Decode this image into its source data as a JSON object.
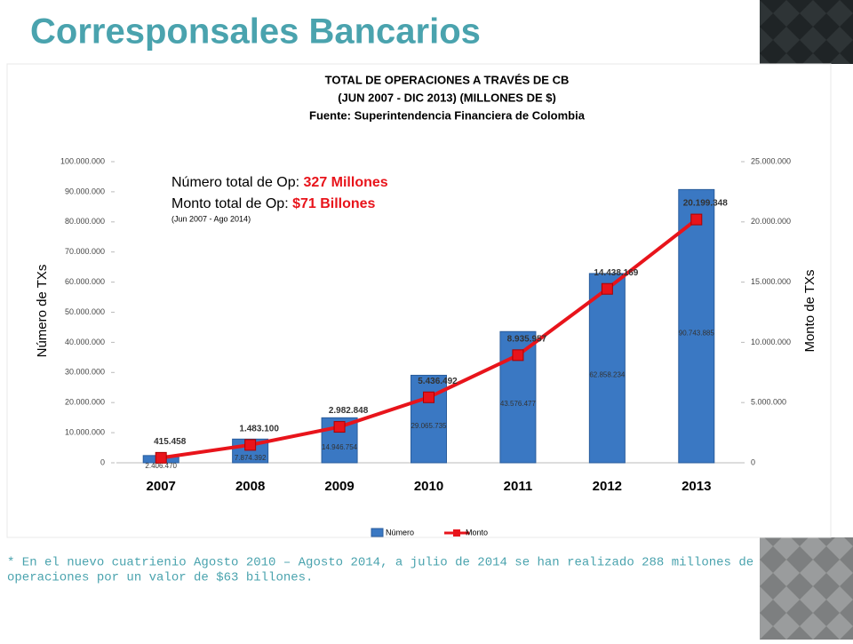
{
  "slide_title": "Corresponsales Bancarios",
  "footnote": [
    "* En el nuevo cuatrienio Agosto 2010 – Agosto 2014, a julio de 2014 se han realizado 288 millones de",
    "operaciones por un valor de $63 billones."
  ],
  "chart_data": {
    "type": "bar",
    "title": [
      "TOTAL DE OPERACIONES A TRAVÉS DE CB",
      "(JUN 2007 -  DIC 2013)  (MILLONES DE $)",
      "Fuente: Superintendencia Financiera de Colombia"
    ],
    "ylabel": "Número de TXs",
    "y2label": "Monto de TXs",
    "annotations": [
      {
        "text": "Número total de Op: ",
        "highlight": "327 Millones"
      },
      {
        "text": "Monto total de Op: ",
        "highlight": "$71 Billones"
      },
      {
        "text": "(Jun 2007 - Ago 2014)"
      }
    ],
    "categories": [
      "2007",
      "2008",
      "2009",
      "2010",
      "2011",
      "2012",
      "2013"
    ],
    "series": [
      {
        "name": "Número",
        "type": "bar",
        "color": "#3a78c3",
        "values": [
          2406470,
          7874392,
          14946754,
          29065735,
          43576477,
          62858234,
          90743885
        ],
        "value_labels": [
          "2.406.470",
          "7.874.392",
          "14.946.754",
          "29.065.735",
          "43.576.477",
          "62.858.234",
          "90.743.885"
        ]
      },
      {
        "name": "Monto",
        "type": "line",
        "color": "#e8141b",
        "axis": "y2",
        "values": [
          415458,
          1483100,
          2982848,
          5436492,
          8935957,
          14438169,
          20199348
        ],
        "value_labels": [
          "415.458",
          "1.483.100",
          "2.982.848",
          "5.436.492",
          "8.935.957",
          "14.438.169",
          "20.199.348"
        ]
      }
    ],
    "ylim": [
      0,
      100000000
    ],
    "yticks": [
      0,
      {
        "value": 10000000,
        "label": "10.000.000"
      },
      {
        "value": 20000000,
        "label": "20.000.000"
      },
      {
        "value": 30000000,
        "label": "30.000.000"
      },
      {
        "value": 40000000,
        "label": "40.000.000"
      },
      {
        "value": 50000000,
        "label": "50.000.000"
      },
      {
        "value": 60000000,
        "label": "60.000.000"
      },
      {
        "value": 70000000,
        "label": "70.000.000"
      },
      {
        "value": 80000000,
        "label": "80.000.000"
      },
      {
        "value": 90000000,
        "label": "90.000.000"
      },
      {
        "value": 100000000,
        "label": "100.000.000"
      }
    ],
    "y2lim": [
      0,
      25000000
    ],
    "y2ticks": [
      0,
      {
        "value": 5000000,
        "label": "5.000.000"
      },
      {
        "value": 10000000,
        "label": "10.000.000"
      },
      {
        "value": 15000000,
        "label": "15.000.000"
      },
      {
        "value": 20000000,
        "label": "20.000.000"
      },
      {
        "value": 25000000,
        "label": "25.000.000"
      }
    ]
  }
}
